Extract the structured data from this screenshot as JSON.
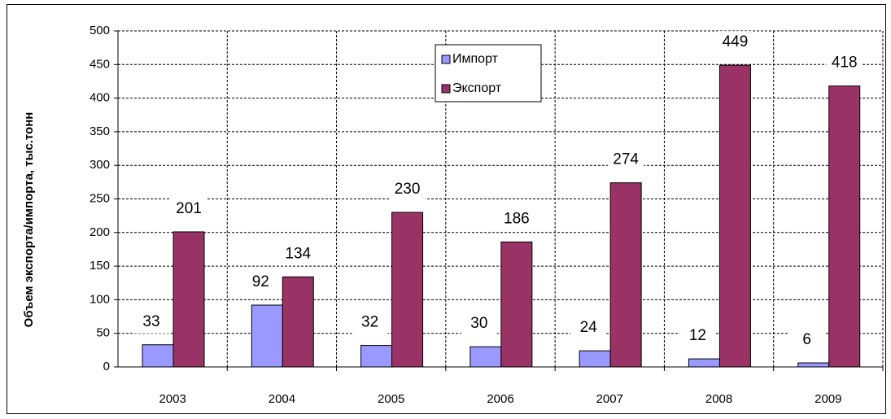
{
  "chart_data": {
    "type": "bar",
    "y_label": "Объем экспорта/импорта, тыс.тонн",
    "categories": [
      "2003",
      "2004",
      "2005",
      "2006",
      "2007",
      "2008",
      "2009"
    ],
    "series": [
      {
        "name": "Импорт",
        "color": "#9999ff",
        "values": [
          33,
          92,
          32,
          30,
          24,
          12,
          6
        ]
      },
      {
        "name": "Экспорт",
        "color": "#993366",
        "values": [
          201,
          134,
          230,
          186,
          274,
          449,
          418
        ]
      }
    ],
    "ylim": [
      0,
      500
    ],
    "yticks": [
      0,
      50,
      100,
      150,
      200,
      250,
      300,
      350,
      400,
      450,
      500
    ],
    "grid": true,
    "legend": "top"
  }
}
